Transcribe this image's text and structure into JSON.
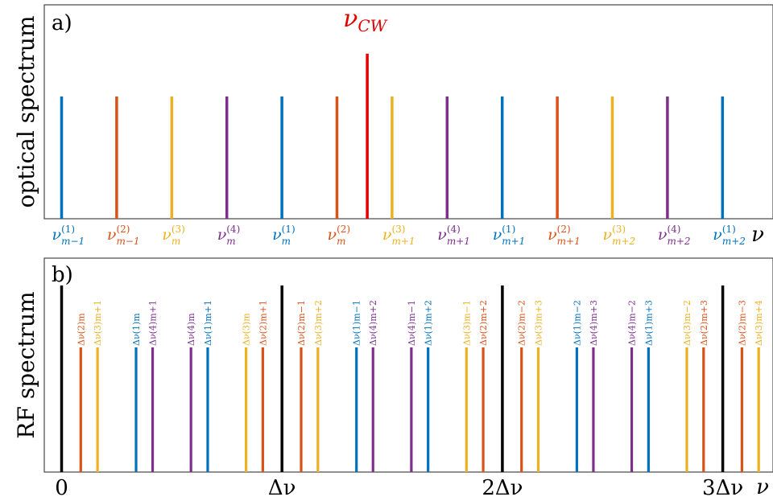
{
  "colors": {
    "c1": "#0072BD",
    "c2": "#D95319",
    "c3": "#EDB120",
    "c4": "#7E2F8E",
    "cw": "#E00000",
    "ref": "#000000"
  },
  "chart_data": [
    {
      "type": "line-spectrum",
      "panel_label": "a)",
      "ylabel": "optical spectrum",
      "xlabel": "ν",
      "cw": {
        "label": "ν_CW",
        "sym": "ν",
        "sub": "CW",
        "x": 5.55,
        "height": 1.35
      },
      "lines": [
        {
          "x": 0,
          "height": 1,
          "family": "c1",
          "sym": "ν",
          "sup": "(1)",
          "sub": "m−1"
        },
        {
          "x": 1,
          "height": 1,
          "family": "c2",
          "sym": "ν",
          "sup": "(2)",
          "sub": "m−1"
        },
        {
          "x": 2,
          "height": 1,
          "family": "c3",
          "sym": "ν",
          "sup": "(3)",
          "sub": "m"
        },
        {
          "x": 3,
          "height": 1,
          "family": "c4",
          "sym": "ν",
          "sup": "(4)",
          "sub": "m"
        },
        {
          "x": 4,
          "height": 1,
          "family": "c1",
          "sym": "ν",
          "sup": "(1)",
          "sub": "m"
        },
        {
          "x": 5,
          "height": 1,
          "family": "c2",
          "sym": "ν",
          "sup": "(2)",
          "sub": "m"
        },
        {
          "x": 6,
          "height": 1,
          "family": "c3",
          "sym": "ν",
          "sup": "(3)",
          "sub": "m+1"
        },
        {
          "x": 7,
          "height": 1,
          "family": "c4",
          "sym": "ν",
          "sup": "(4)",
          "sub": "m+1"
        },
        {
          "x": 8,
          "height": 1,
          "family": "c1",
          "sym": "ν",
          "sup": "(1)",
          "sub": "m+1"
        },
        {
          "x": 9,
          "height": 1,
          "family": "c2",
          "sym": "ν",
          "sup": "(2)",
          "sub": "m+1"
        },
        {
          "x": 10,
          "height": 1,
          "family": "c3",
          "sym": "ν",
          "sup": "(3)",
          "sub": "m+2"
        },
        {
          "x": 11,
          "height": 1,
          "family": "c4",
          "sym": "ν",
          "sup": "(4)",
          "sub": "m+2"
        },
        {
          "x": 12,
          "height": 1,
          "family": "c1",
          "sym": "ν",
          "sup": "(1)",
          "sub": "m+2"
        }
      ]
    },
    {
      "type": "line-spectrum",
      "panel_label": "b)",
      "ylabel": "RF spectrum",
      "xlabel": "ν",
      "x_ticks": [
        {
          "x": 0,
          "label": "0"
        },
        {
          "x": 1,
          "label": "Δν"
        },
        {
          "x": 2,
          "label": "2Δν"
        },
        {
          "x": 3,
          "label": "3Δν"
        }
      ],
      "ref_lines": [
        {
          "x": 0
        },
        {
          "x": 1
        },
        {
          "x": 2
        },
        {
          "x": 3
        }
      ],
      "lines": [
        {
          "x": 0.087,
          "family": "c2",
          "label": "Δν(2)m"
        },
        {
          "x": 0.163,
          "family": "c3",
          "label": "Δν(3)m+1"
        },
        {
          "x": 0.338,
          "family": "c1",
          "label": "Δν(1)m"
        },
        {
          "x": 0.413,
          "family": "c4",
          "label": "Δν(4)m+1"
        },
        {
          "x": 0.587,
          "family": "c4",
          "label": "Δν(4)m"
        },
        {
          "x": 0.663,
          "family": "c1",
          "label": "Δν(1)m+1"
        },
        {
          "x": 0.837,
          "family": "c3",
          "label": "Δν(3)m"
        },
        {
          "x": 0.913,
          "family": "c2",
          "label": "Δν(2)m+1"
        },
        {
          "x": 1.087,
          "family": "c2",
          "label": "Δν(2)m−1"
        },
        {
          "x": 1.163,
          "family": "c3",
          "label": "Δν(3)m+2"
        },
        {
          "x": 1.338,
          "family": "c1",
          "label": "Δν(1)m−1"
        },
        {
          "x": 1.413,
          "family": "c4",
          "label": "Δν(4)m+2"
        },
        {
          "x": 1.587,
          "family": "c4",
          "label": "Δν(4)m−1"
        },
        {
          "x": 1.663,
          "family": "c1",
          "label": "Δν(1)m+2"
        },
        {
          "x": 1.837,
          "family": "c3",
          "label": "Δν(3)m−1"
        },
        {
          "x": 1.913,
          "family": "c2",
          "label": "Δν(2)m+2"
        },
        {
          "x": 2.087,
          "family": "c2",
          "label": "Δν(2)m−2"
        },
        {
          "x": 2.163,
          "family": "c3",
          "label": "Δν(3)m+3"
        },
        {
          "x": 2.338,
          "family": "c1",
          "label": "Δν(1)m−2"
        },
        {
          "x": 2.413,
          "family": "c4",
          "label": "Δν(4)m+3"
        },
        {
          "x": 2.587,
          "family": "c4",
          "label": "Δν(4)m−2"
        },
        {
          "x": 2.663,
          "family": "c1",
          "label": "Δν(1)m+3"
        },
        {
          "x": 2.837,
          "family": "c3",
          "label": "Δν(3)m−2"
        },
        {
          "x": 2.913,
          "family": "c2",
          "label": "Δν(2)m+3"
        },
        {
          "x": 3.087,
          "family": "c2",
          "label": "Δν(2)m−3"
        },
        {
          "x": 3.163,
          "family": "c3",
          "label": "Δν(3)m+4"
        }
      ]
    }
  ]
}
